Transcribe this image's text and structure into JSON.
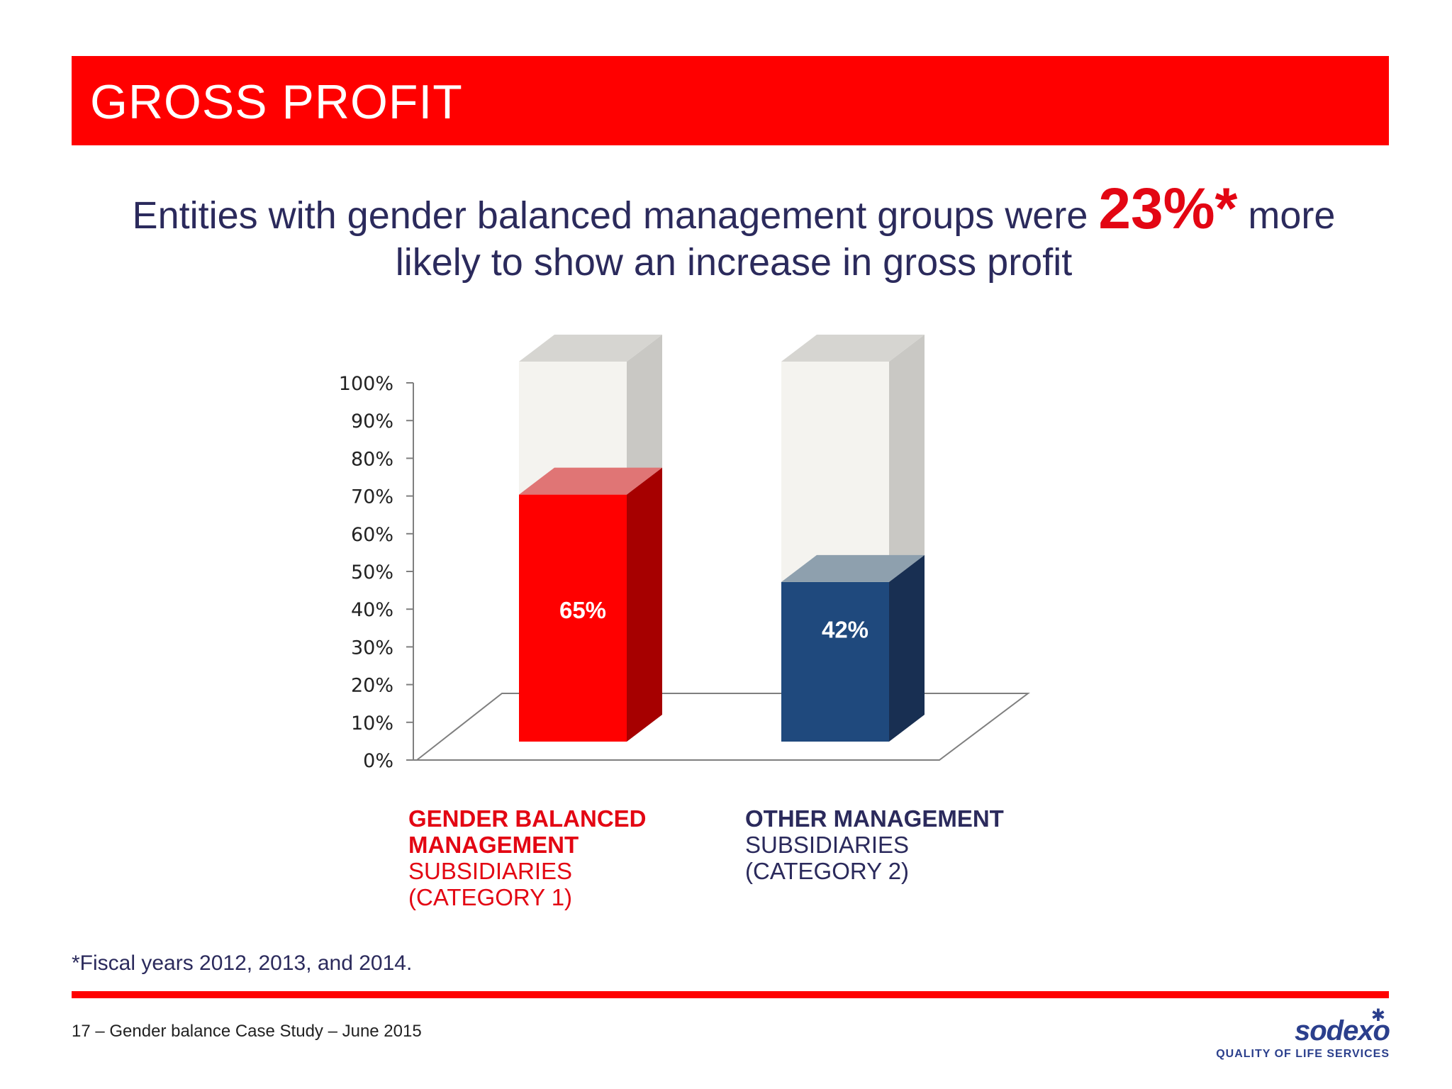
{
  "header": {
    "title": "GROSS PROFIT"
  },
  "headline": {
    "text_before": "Entities with gender balanced management groups were ",
    "highlight": "23%*",
    "text_after": " more likely to show an increase in gross profit"
  },
  "chart_data": {
    "type": "bar",
    "categories": [
      "GENDER BALANCED MANAGEMENT SUBSIDIARIES (CATEGORY 1)",
      "OTHER MANAGEMENT SUBSIDIARIES (CATEGORY 2)"
    ],
    "values": [
      65,
      42
    ],
    "value_labels": [
      "65%",
      "42%"
    ],
    "ylim": [
      0,
      100
    ],
    "yticks": [
      0,
      10,
      20,
      30,
      40,
      50,
      60,
      70,
      80,
      90,
      100
    ],
    "ytick_labels": [
      "0%",
      "10%",
      "20%",
      "30%",
      "40%",
      "50%",
      "60%",
      "70%",
      "80%",
      "90%",
      "100%"
    ],
    "colors": [
      "#ff0000",
      "#1f497d"
    ]
  },
  "labels": {
    "cat1_bold_1": "GENDER BALANCED",
    "cat1_bold_2": "MANAGEMENT",
    "cat1_plain_1": "SUBSIDIARIES",
    "cat1_plain_2": "(CATEGORY 1)",
    "cat2_bold_1": "OTHER MANAGEMENT",
    "cat2_plain_1": "SUBSIDIARIES",
    "cat2_plain_2": "(CATEGORY 2)"
  },
  "footnote": "*Fiscal years 2012, 2013, and 2014.",
  "footer": {
    "page": "17",
    "text": "– Gender balance Case Study – June 2015"
  },
  "logo": {
    "name": "sodexo",
    "tagline": "QUALITY OF LIFE SERVICES",
    "icon": "star-icon"
  }
}
